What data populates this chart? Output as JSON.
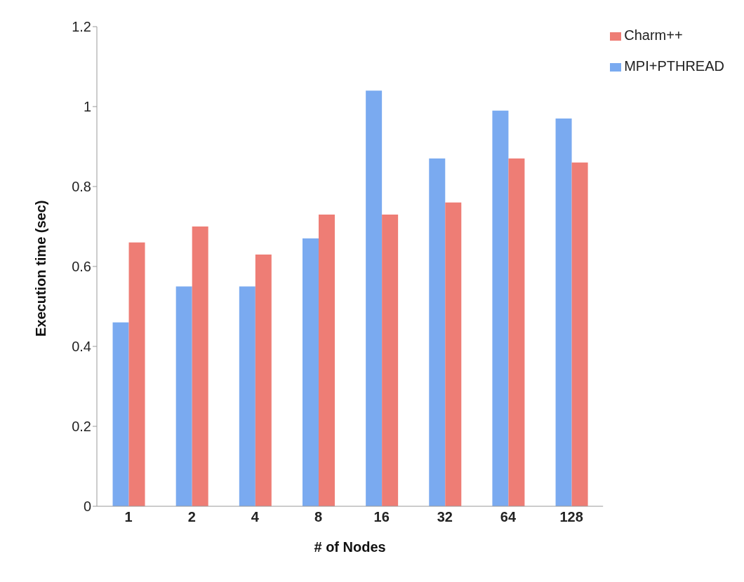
{
  "chart_data": {
    "type": "bar",
    "xlabel": "# of Nodes",
    "ylabel": "Execution time (sec)",
    "categories": [
      "1",
      "2",
      "4",
      "8",
      "16",
      "32",
      "64",
      "128"
    ],
    "series": [
      {
        "name": "MPI+PTHREAD",
        "color": "#7aaaf0",
        "values": [
          0.46,
          0.55,
          0.55,
          0.67,
          1.04,
          0.87,
          0.99,
          0.97
        ]
      },
      {
        "name": "Charm++",
        "color": "#ee7d75",
        "values": [
          0.66,
          0.7,
          0.63,
          0.73,
          0.73,
          0.76,
          0.87,
          0.86
        ]
      }
    ],
    "ylim": [
      0,
      1.2
    ],
    "yticks": [
      0,
      0.2,
      0.4,
      0.6,
      0.8,
      1,
      1.2
    ],
    "grid": false,
    "legend": "top right"
  }
}
